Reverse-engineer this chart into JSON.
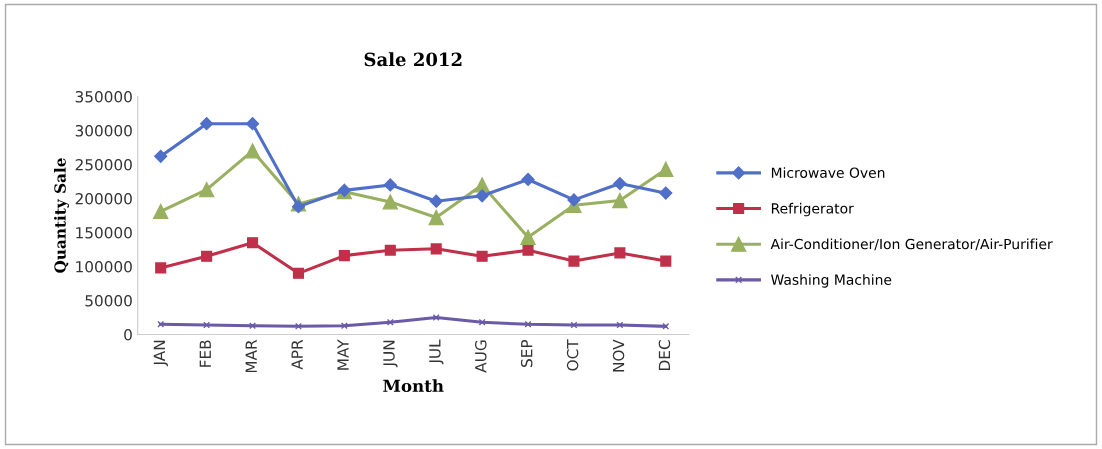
{
  "chart_data": {
    "type": "line",
    "title": "Sale 2012",
    "xlabel": "Month",
    "ylabel": "Quantity Sale",
    "categories": [
      "JAN",
      "FEB",
      "MAR",
      "APR",
      "MAY",
      "JUN",
      "JUL",
      "AUG",
      "SEP",
      "OCT",
      "NOV",
      "DEC"
    ],
    "ylim": [
      0,
      350000
    ],
    "yticks": [
      0,
      50000,
      100000,
      150000,
      200000,
      250000,
      300000,
      350000
    ],
    "grid": false,
    "legend": "right",
    "line_style": "solid",
    "series": [
      {
        "name": "Microwave Oven",
        "color": "#4f6fc8",
        "marker": "diamond",
        "values": [
          262000,
          310000,
          310000,
          188000,
          212000,
          220000,
          196000,
          204000,
          228000,
          198000,
          222000,
          208000
        ]
      },
      {
        "name": "Refrigerator",
        "color": "#c0304a",
        "marker": "square",
        "values": [
          98000,
          115000,
          135000,
          90000,
          116000,
          124000,
          126000,
          115000,
          124000,
          108000,
          120000,
          108000
        ]
      },
      {
        "name": "Air-Conditioner/Ion Generator/Air-Purifier",
        "color": "#98b060",
        "marker": "triangle",
        "values": [
          181000,
          213000,
          270000,
          192000,
          210000,
          195000,
          172000,
          220000,
          143000,
          190000,
          197000,
          243000
        ]
      },
      {
        "name": "Washing Machine",
        "color": "#6a5aa8",
        "marker": "cross",
        "values": [
          15000,
          14000,
          13000,
          12000,
          13000,
          18000,
          25000,
          18000,
          15000,
          14000,
          14000,
          12000
        ]
      }
    ]
  }
}
